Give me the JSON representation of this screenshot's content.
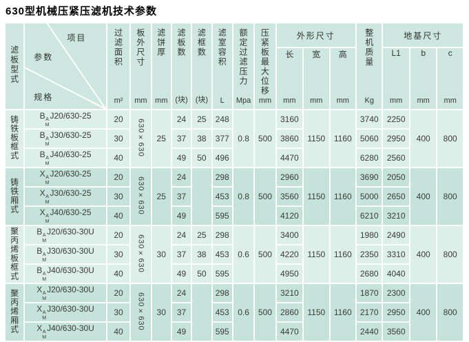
{
  "title": "630型机械压紧压滤机技术参数",
  "colors": {
    "header_bg": "#cde7e0",
    "group_light_bg": "#dcefe9",
    "group_dark_bg": "#c6e3db",
    "gridline": "#ffffff",
    "text": "#3a3a3a"
  },
  "header": {
    "plate_type_label": "滤板型式",
    "corner": {
      "item": "项目",
      "param": "参数",
      "spec": "规格"
    },
    "simple_columns": [
      {
        "label": "过滤面积",
        "unit": "m²"
      },
      {
        "label": "板外尺寸",
        "unit": "mm"
      },
      {
        "label": "滤饼厚",
        "unit": "mm"
      },
      {
        "label": "滤板数",
        "unit": "(块)"
      },
      {
        "label": "滤框数",
        "unit": "(块)"
      },
      {
        "label": "滤室容积",
        "unit": "L"
      },
      {
        "label": "额定过滤压力",
        "unit": "Mpa"
      },
      {
        "label": "压紧板最大位移",
        "unit": "mm"
      }
    ],
    "outline_group": {
      "label": "外形尺寸",
      "subs": [
        {
          "label": "长",
          "unit": "mm"
        },
        {
          "label": "宽",
          "unit": "mm"
        },
        {
          "label": "高",
          "unit": "mm"
        }
      ]
    },
    "weight_column": {
      "label": "整机质量",
      "unit": "Kg"
    },
    "foundation_group": {
      "label": "地基尺寸",
      "subs": [
        {
          "label": "L1",
          "unit": "mm"
        },
        {
          "label": "b",
          "unit": "mm"
        },
        {
          "label": "c",
          "unit": "mm"
        }
      ]
    }
  },
  "groups": [
    {
      "type_label": "铸铁板框式",
      "shade": "light",
      "frames_merged": false,
      "merged": {
        "plate_size": "630×630",
        "cake_thickness": "25",
        "pressure": "0.8",
        "max_displacement": "500",
        "width": "1150",
        "height": "1160",
        "b": "400",
        "c": "800"
      },
      "rows": [
        {
          "model": {
            "prefix": "B",
            "sup": "A",
            "sub": "M",
            "rest": "J20/630-25"
          },
          "area": "20",
          "plates": "24",
          "frames": "25",
          "volume": "248",
          "length": "3160",
          "weight": "3740",
          "l1": "2250"
        },
        {
          "model": {
            "prefix": "B",
            "sup": "A",
            "sub": "M",
            "rest": "J30/630-25"
          },
          "area": "30",
          "plates": "37",
          "frames": "38",
          "volume": "377",
          "length": "3860",
          "weight": "5060",
          "l1": "2950"
        },
        {
          "model": {
            "prefix": "B",
            "sup": "A",
            "sub": "M",
            "rest": "J40/630-25"
          },
          "area": "40",
          "plates": "49",
          "frames": "50",
          "volume": "496",
          "length": "4470",
          "weight": "6280",
          "l1": "2560"
        }
      ]
    },
    {
      "type_label": "铸铁厢式",
      "shade": "dark",
      "frames_merged": true,
      "merged": {
        "plate_size": "630×630",
        "cake_thickness": "25",
        "pressure": "0.8",
        "max_displacement": "500",
        "width": "1150",
        "height": "1160",
        "b": "400",
        "c": "800"
      },
      "rows": [
        {
          "model": {
            "prefix": "X",
            "sup": "A",
            "sub": "M",
            "rest": "J20/630-25"
          },
          "area": "20",
          "plates": "24",
          "frames": "",
          "volume": "298",
          "length": "2960",
          "weight": "3690",
          "l1": "2050"
        },
        {
          "model": {
            "prefix": "X",
            "sup": "A",
            "sub": "M",
            "rest": "J30/630-25"
          },
          "area": "30",
          "plates": "37",
          "frames": "",
          "volume": "453",
          "length": "3560",
          "weight": "5000",
          "l1": "2650"
        },
        {
          "model": {
            "prefix": "X",
            "sup": "A",
            "sub": "M",
            "rest": "J40/630-25"
          },
          "area": "40",
          "plates": "49",
          "frames": "",
          "volume": "595",
          "length": "4120",
          "weight": "6210",
          "l1": "3210"
        }
      ]
    },
    {
      "type_label": "聚丙烯板框式",
      "shade": "light",
      "frames_merged": false,
      "merged": {
        "plate_size": "630×630",
        "cake_thickness": "30",
        "pressure": "0.6",
        "max_displacement": "500",
        "width": "1150",
        "height": "1160",
        "b": "400",
        "c": "800"
      },
      "rows": [
        {
          "model": {
            "prefix": "B",
            "sup": "A",
            "sub": "M",
            "rest": "J20/630-30U"
          },
          "area": "20",
          "plates": "24",
          "frames": "25",
          "volume": "298",
          "length": "3400",
          "weight": "1980",
          "l1": "2490"
        },
        {
          "model": {
            "prefix": "B",
            "sup": "A",
            "sub": "M",
            "rest": "J30/630-30U"
          },
          "area": "30",
          "plates": "37",
          "frames": "38",
          "volume": "453",
          "length": "4220",
          "weight": "2350",
          "l1": "3310"
        },
        {
          "model": {
            "prefix": "B",
            "sup": "A",
            "sub": "M",
            "rest": "J40/630-30U"
          },
          "area": "40",
          "plates": "49",
          "frames": "50",
          "volume": "595",
          "length": "4950",
          "weight": "2680",
          "l1": "4040"
        }
      ]
    },
    {
      "type_label": "聚丙烯厢式",
      "shade": "dark",
      "frames_merged": true,
      "merged": {
        "plate_size": "630×630",
        "cake_thickness": "30",
        "pressure": "0.6",
        "max_displacement": "500",
        "width": "1150",
        "height": "1160",
        "b": "400",
        "c": "800"
      },
      "rows": [
        {
          "model": {
            "prefix": "X",
            "sup": "A",
            "sub": "M",
            "rest": "J20/630-30U"
          },
          "area": "20",
          "plates": "24",
          "frames": "",
          "volume": "298",
          "length": "3210",
          "weight": "1870",
          "l1": "2300"
        },
        {
          "model": {
            "prefix": "X",
            "sup": "A",
            "sub": "M",
            "rest": "J30/630-30U"
          },
          "area": "30",
          "plates": "37",
          "frames": "",
          "volume": "453",
          "length": "2860",
          "weight": "2170",
          "l1": "2950"
        },
        {
          "model": {
            "prefix": "X",
            "sup": "A",
            "sub": "M",
            "rest": "J40/630-30U"
          },
          "area": "40",
          "plates": "49",
          "frames": "",
          "volume": "595",
          "length": "4470",
          "weight": "2440",
          "l1": "3560"
        }
      ]
    }
  ]
}
